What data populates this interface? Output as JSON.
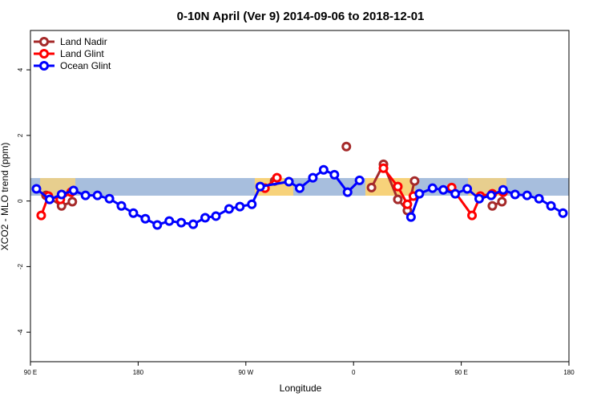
{
  "chart_data": {
    "type": "line",
    "title": "0-10N April (Ver 9)   2014-09-06 to 2018-12-01",
    "xlabel": "Longitude",
    "ylabel": "XCO2 - MLO trend (ppm)",
    "xlim": [
      90,
      540
    ],
    "ylim": [
      -4.9,
      5.2
    ],
    "xticks": [
      {
        "value": 90,
        "label": "90 E"
      },
      {
        "value": 180,
        "label": "180"
      },
      {
        "value": 270,
        "label": "90 W"
      },
      {
        "value": 360,
        "label": "0"
      },
      {
        "value": 450,
        "label": "90 E"
      },
      {
        "value": 540,
        "label": "180"
      }
    ],
    "yticks": [
      -4,
      -2,
      0,
      2,
      4
    ],
    "legend": "upper left",
    "series": [
      {
        "name": "Land Nadir",
        "color": "#a52a2a",
        "x": [
          103,
          116,
          125,
          null,
          294,
          null,
          354,
          null,
          375,
          385,
          397,
          405,
          411,
          null,
          476,
          484
        ],
        "values": [
          0.17,
          -0.15,
          -0.02,
          null,
          0.61,
          null,
          1.66,
          null,
          0.41,
          1.12,
          0.05,
          -0.29,
          0.61,
          null,
          -0.15,
          -0.02
        ]
      },
      {
        "name": "Land Glint",
        "color": "#ff0000",
        "x": [
          99,
          105,
          115,
          124,
          null,
          286,
          296,
          null,
          385,
          397,
          405,
          410,
          null,
          442,
          459,
          466,
          476,
          485
        ],
        "values": [
          -0.44,
          0.15,
          0.05,
          0.27,
          null,
          0.39,
          0.71,
          null,
          1.0,
          0.44,
          -0.1,
          0.15,
          null,
          0.41,
          -0.44,
          0.15,
          0.22,
          0.27
        ]
      },
      {
        "name": "Ocean Glint",
        "color": "#0000ff",
        "x": [
          95,
          106,
          116,
          126,
          136,
          146,
          156,
          166,
          176,
          186,
          196,
          206,
          216,
          226,
          236,
          245,
          256,
          265,
          275,
          282,
          306,
          315,
          326,
          335,
          344,
          355,
          365,
          null,
          408,
          415,
          426,
          435,
          445,
          455,
          465,
          475,
          485,
          495,
          505,
          515,
          525,
          535
        ],
        "values": [
          0.37,
          0.05,
          0.2,
          0.32,
          0.17,
          0.17,
          0.07,
          -0.15,
          -0.37,
          -0.54,
          -0.73,
          -0.61,
          -0.66,
          -0.71,
          -0.51,
          -0.46,
          -0.24,
          -0.17,
          -0.1,
          0.44,
          0.59,
          0.39,
          0.71,
          0.95,
          0.8,
          0.27,
          0.63,
          null,
          -0.49,
          0.22,
          0.39,
          0.34,
          0.22,
          0.37,
          0.07,
          0.17,
          0.34,
          0.2,
          0.17,
          0.07,
          -0.15,
          -0.37
        ]
      }
    ]
  }
}
